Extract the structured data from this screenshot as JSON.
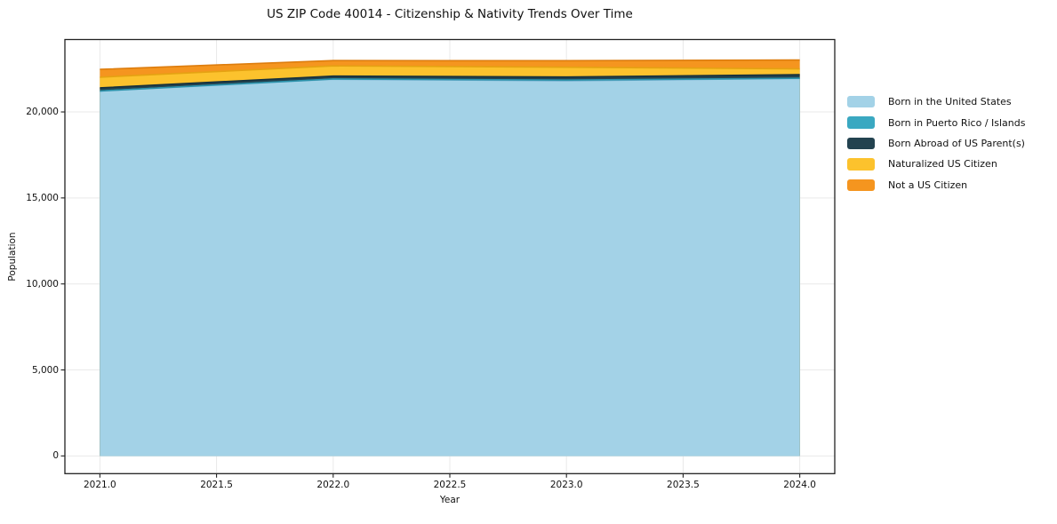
{
  "chart_data": {
    "type": "area",
    "title": "US ZIP Code 40014 - Citizenship & Nativity Trends Over Time",
    "xlabel": "Year",
    "ylabel": "Population",
    "stacked": true,
    "grid": true,
    "legend_position": "right-outside",
    "x": [
      2021,
      2022,
      2023,
      2024
    ],
    "series": [
      {
        "name": "Born in the United States",
        "color": "#a3d2e7",
        "edge_color": "#74aed0",
        "values": [
          21210,
          21900,
          21810,
          21950
        ]
      },
      {
        "name": "Born in Puerto Rico / Islands",
        "color": "#3aa8c1",
        "edge_color": "#2b93ab",
        "values": [
          10,
          15,
          40,
          10
        ]
      },
      {
        "name": "Born Abroad of US Parent(s)",
        "color": "#234350",
        "edge_color": "#16303c",
        "values": [
          180,
          170,
          180,
          205
        ]
      },
      {
        "name": "Naturalized US Citizen",
        "color": "#fcc22d",
        "edge_color": "#e5a212",
        "values": [
          620,
          590,
          570,
          340
        ]
      },
      {
        "name": "Not a US Citizen",
        "color": "#f5951f",
        "edge_color": "#dd7d0e",
        "values": [
          455,
          310,
          380,
          515
        ]
      }
    ],
    "xlim": [
      2020.85,
      2024.15
    ],
    "ylim": [
      -1030,
      24210
    ],
    "xticks": {
      "values": [
        2021.0,
        2021.5,
        2022.0,
        2022.5,
        2023.0,
        2023.5,
        2024.0
      ],
      "labels": [
        "2021.0",
        "2021.5",
        "2022.0",
        "2022.5",
        "2023.0",
        "2023.5",
        "2024.0"
      ]
    },
    "yticks": {
      "values": [
        0,
        5000,
        10000,
        15000,
        20000
      ],
      "labels": [
        "0",
        "5,000",
        "10,000",
        "15,000",
        "20,000"
      ]
    },
    "grid_color": "#e9e9e9",
    "spine_color": "#222222",
    "text_color": "#111111"
  }
}
